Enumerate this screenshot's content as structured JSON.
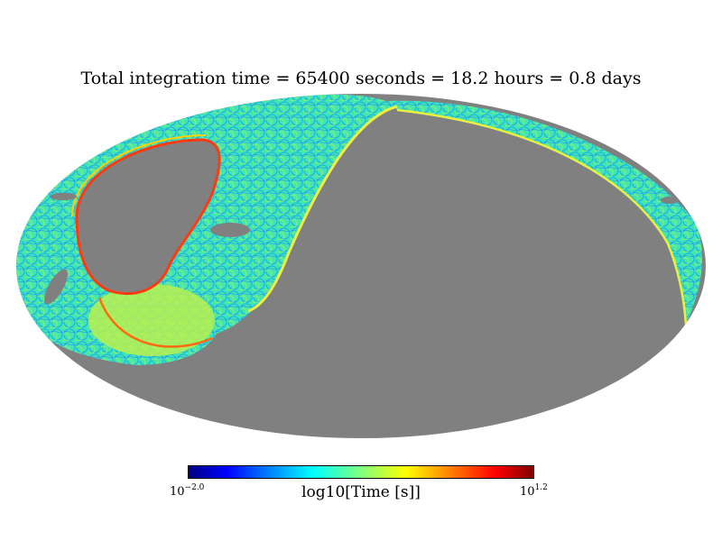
{
  "title": "Total integration time = 65400 seconds = 18.2 hours = 0.8 days",
  "chart_data": {
    "type": "heatmap",
    "projection": "mollweide",
    "title": "Total integration time = 65400 seconds = 18.2 hours = 0.8 days",
    "colorbar": {
      "label": "log10[Time [s]]",
      "min_base": "10",
      "min_exp": "−2.0",
      "max_base": "10",
      "max_exp": "1.2",
      "range": [
        -2.0,
        1.2
      ],
      "colormap": "jet"
    },
    "unobserved_color": "#808080",
    "observed_region": "scan rings over left third of the sky and a band along the upper-right rim; interior and lower region unobserved (gray)"
  }
}
